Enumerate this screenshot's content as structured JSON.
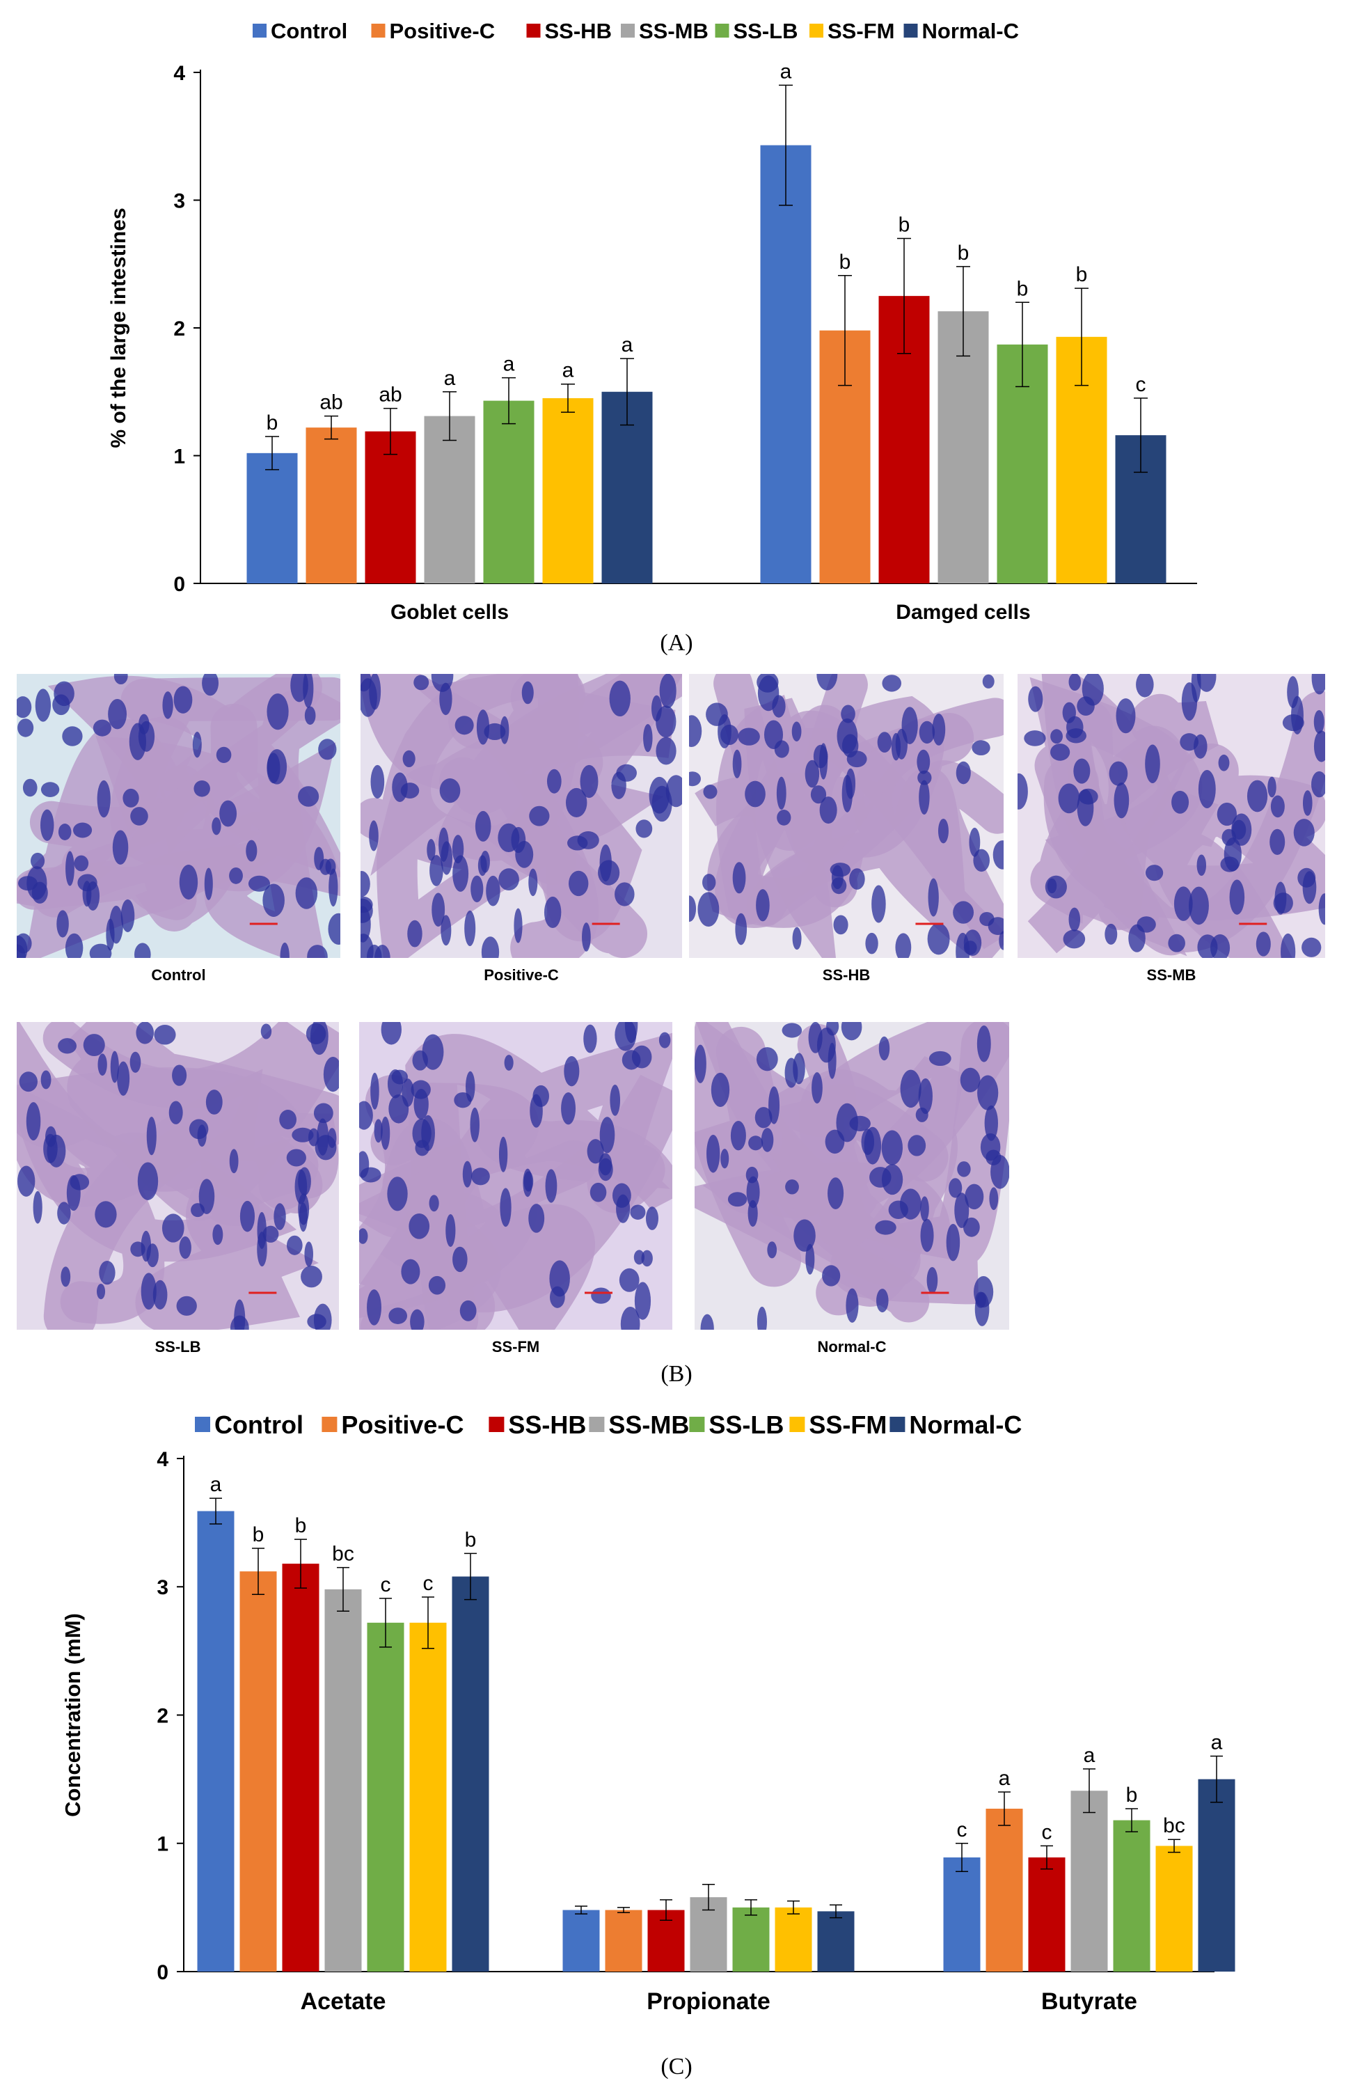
{
  "panels": {
    "A": "(A)",
    "B": "(B)",
    "C": "(C)"
  },
  "histology": {
    "captions": [
      "Control",
      "Positive-C",
      "SS-HB",
      "SS-MB",
      "SS-LB",
      "SS-FM",
      "Normal-C"
    ]
  },
  "colors": {
    "series": [
      "#4472C4",
      "#ED7D31",
      "#C00000",
      "#A5A5A5",
      "#70AD47",
      "#FFC000",
      "#264478"
    ]
  },
  "chart_data": [
    {
      "type": "bar",
      "panel": "A",
      "title": "",
      "xlabel": "",
      "ylabel": "% of the large intestines",
      "ylim": [
        0,
        4
      ],
      "yticks": [
        0,
        1,
        2,
        3,
        4
      ],
      "legend_position": "top",
      "grid": false,
      "categories": [
        "Goblet cells",
        "Damged cells"
      ],
      "series": [
        {
          "name": "Control",
          "values": [
            1.02,
            3.43
          ],
          "errors": [
            0.13,
            0.47
          ],
          "letters": [
            "b",
            "a"
          ]
        },
        {
          "name": "Positive-C",
          "values": [
            1.22,
            1.98
          ],
          "errors": [
            0.09,
            0.43
          ],
          "letters": [
            "ab",
            "b"
          ]
        },
        {
          "name": "SS-HB",
          "values": [
            1.19,
            2.25
          ],
          "errors": [
            0.18,
            0.45
          ],
          "letters": [
            "ab",
            "b"
          ]
        },
        {
          "name": "SS-MB",
          "values": [
            1.31,
            2.13
          ],
          "errors": [
            0.19,
            0.35
          ],
          "letters": [
            "a",
            "b"
          ]
        },
        {
          "name": "SS-LB",
          "values": [
            1.43,
            1.87
          ],
          "errors": [
            0.18,
            0.33
          ],
          "letters": [
            "a",
            "b"
          ]
        },
        {
          "name": "SS-FM",
          "values": [
            1.45,
            1.93
          ],
          "errors": [
            0.11,
            0.38
          ],
          "letters": [
            "a",
            "b"
          ]
        },
        {
          "name": "Normal-C",
          "values": [
            1.5,
            1.16
          ],
          "errors": [
            0.26,
            0.29
          ],
          "letters": [
            "a",
            "c"
          ]
        }
      ]
    },
    {
      "type": "bar",
      "panel": "C",
      "title": "",
      "xlabel": "",
      "ylabel": "Concentration (mM)",
      "ylim": [
        0,
        4
      ],
      "yticks": [
        0,
        1,
        2,
        3,
        4
      ],
      "legend_position": "top",
      "grid": false,
      "categories": [
        "Acetate",
        "Propionate",
        "Butyrate"
      ],
      "series": [
        {
          "name": "Control",
          "values": [
            3.59,
            0.48,
            0.89
          ],
          "errors": [
            0.1,
            0.03,
            0.11
          ],
          "letters": [
            "a",
            "",
            "c"
          ]
        },
        {
          "name": "Positive-C",
          "values": [
            3.12,
            0.48,
            1.27
          ],
          "errors": [
            0.18,
            0.02,
            0.13
          ],
          "letters": [
            "b",
            "",
            "a"
          ]
        },
        {
          "name": "SS-HB",
          "values": [
            3.18,
            0.48,
            0.89
          ],
          "errors": [
            0.19,
            0.08,
            0.09
          ],
          "letters": [
            "b",
            "",
            "c"
          ]
        },
        {
          "name": "SS-MB",
          "values": [
            2.98,
            0.58,
            1.41
          ],
          "errors": [
            0.17,
            0.1,
            0.17
          ],
          "letters": [
            "bc",
            "",
            "a"
          ]
        },
        {
          "name": "SS-LB",
          "values": [
            2.72,
            0.5,
            1.18
          ],
          "errors": [
            0.19,
            0.06,
            0.09
          ],
          "letters": [
            "c",
            "",
            "b"
          ]
        },
        {
          "name": "SS-FM",
          "values": [
            2.72,
            0.5,
            0.98
          ],
          "errors": [
            0.2,
            0.05,
            0.05
          ],
          "letters": [
            "c",
            "",
            "bc"
          ]
        },
        {
          "name": "Normal-C",
          "values": [
            3.08,
            0.47,
            1.5
          ],
          "errors": [
            0.18,
            0.05,
            0.18
          ],
          "letters": [
            "b",
            "",
            "a"
          ]
        }
      ]
    }
  ]
}
